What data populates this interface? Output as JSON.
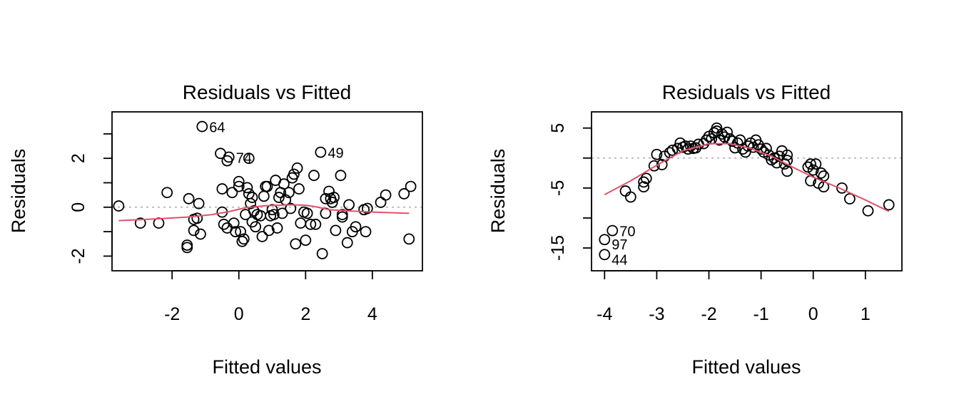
{
  "chart_data": [
    {
      "type": "scatter",
      "title": "Residuals vs Fitted",
      "xlabel": "Fitted values",
      "ylabel": "Residuals",
      "xlim": [
        -3.8,
        5.5
      ],
      "ylim": [
        -2.6,
        3.9
      ],
      "xticks": [
        -2,
        0,
        2,
        4
      ],
      "xtick_labels": [
        "-2",
        "0",
        "2",
        "4"
      ],
      "yticks": [
        -2,
        -1,
        0,
        1,
        2,
        3
      ],
      "ytick_labels": [
        "-2",
        "",
        "0",
        "",
        "2",
        ""
      ],
      "reference_line_y": 0,
      "points": [
        [
          -3.6,
          0.05
        ],
        [
          -2.95,
          -0.65
        ],
        [
          -2.4,
          -0.65
        ],
        [
          -2.15,
          0.6
        ],
        [
          -1.55,
          -1.55
        ],
        [
          -1.55,
          -1.65
        ],
        [
          -1.5,
          0.35
        ],
        [
          -1.35,
          -0.95
        ],
        [
          -1.35,
          -0.5
        ],
        [
          -1.25,
          -0.45
        ],
        [
          -1.2,
          0.15
        ],
        [
          -1.15,
          -1.1
        ],
        [
          -1.1,
          3.3
        ],
        [
          -0.55,
          2.2
        ],
        [
          -0.5,
          -0.2
        ],
        [
          -0.5,
          0.75
        ],
        [
          -0.45,
          -0.7
        ],
        [
          -0.35,
          -0.85
        ],
        [
          -0.35,
          1.9
        ],
        [
          -0.3,
          2.05
        ],
        [
          -0.2,
          0.6
        ],
        [
          -0.15,
          -0.65
        ],
        [
          -0.1,
          -1.0
        ],
        [
          0.0,
          0.85
        ],
        [
          0.0,
          1.05
        ],
        [
          0.05,
          -1.0
        ],
        [
          0.1,
          -1.4
        ],
        [
          0.15,
          -1.3
        ],
        [
          0.2,
          -0.3
        ],
        [
          0.25,
          0.8
        ],
        [
          0.3,
          2.0
        ],
        [
          0.3,
          0.55
        ],
        [
          0.35,
          0.15
        ],
        [
          0.4,
          -0.6
        ],
        [
          0.4,
          0.4
        ],
        [
          0.45,
          -0.15
        ],
        [
          0.5,
          -0.8
        ],
        [
          0.55,
          -0.3
        ],
        [
          0.65,
          -0.35
        ],
        [
          0.7,
          -1.2
        ],
        [
          0.75,
          0.45
        ],
        [
          0.8,
          0.85
        ],
        [
          0.85,
          0.85
        ],
        [
          0.9,
          -0.95
        ],
        [
          0.95,
          -0.35
        ],
        [
          1.0,
          -0.1
        ],
        [
          1.05,
          -0.3
        ],
        [
          1.1,
          1.1
        ],
        [
          1.15,
          -0.85
        ],
        [
          1.2,
          0.4
        ],
        [
          1.25,
          0.6
        ],
        [
          1.3,
          -0.25
        ],
        [
          1.35,
          0.95
        ],
        [
          1.4,
          0.3
        ],
        [
          1.5,
          0.6
        ],
        [
          1.55,
          -0.05
        ],
        [
          1.6,
          1.2
        ],
        [
          1.65,
          1.35
        ],
        [
          1.7,
          -1.5
        ],
        [
          1.75,
          1.6
        ],
        [
          1.8,
          0.75
        ],
        [
          1.85,
          -0.65
        ],
        [
          1.95,
          -0.2
        ],
        [
          2.0,
          -1.35
        ],
        [
          2.05,
          -0.25
        ],
        [
          2.15,
          -0.7
        ],
        [
          2.25,
          1.3
        ],
        [
          2.3,
          -0.7
        ],
        [
          2.45,
          2.25
        ],
        [
          2.5,
          -1.9
        ],
        [
          2.6,
          0.35
        ],
        [
          2.6,
          -0.25
        ],
        [
          2.7,
          0.65
        ],
        [
          2.75,
          0.35
        ],
        [
          2.8,
          0.2
        ],
        [
          2.85,
          0.4
        ],
        [
          2.9,
          -0.95
        ],
        [
          3.05,
          1.3
        ],
        [
          3.1,
          -0.4
        ],
        [
          3.1,
          -0.3
        ],
        [
          3.25,
          -1.45
        ],
        [
          3.3,
          0.1
        ],
        [
          3.4,
          -1.0
        ],
        [
          3.5,
          -0.8
        ],
        [
          3.75,
          -0.1
        ],
        [
          3.8,
          -1.0
        ],
        [
          3.85,
          -0.05
        ],
        [
          4.25,
          0.2
        ],
        [
          4.4,
          0.5
        ],
        [
          4.95,
          0.55
        ],
        [
          5.15,
          0.85
        ],
        [
          5.1,
          -1.3
        ]
      ],
      "labeled_points": [
        {
          "label": "64",
          "x": -1.1,
          "y": 3.3
        },
        {
          "label": "74",
          "x": -0.3,
          "y": 2.05
        },
        {
          "label": "49",
          "x": 2.45,
          "y": 2.25
        }
      ],
      "smooth_line": [
        [
          -3.6,
          -0.55
        ],
        [
          -2.5,
          -0.48
        ],
        [
          -1.5,
          -0.4
        ],
        [
          -0.8,
          -0.3
        ],
        [
          -0.3,
          -0.18
        ],
        [
          0.2,
          -0.02
        ],
        [
          0.8,
          0.06
        ],
        [
          1.5,
          0.1
        ],
        [
          2.0,
          0.08
        ],
        [
          2.3,
          0.02
        ],
        [
          2.7,
          -0.1
        ],
        [
          3.3,
          -0.15
        ],
        [
          4.0,
          -0.2
        ],
        [
          5.1,
          -0.25
        ]
      ],
      "smooth_color": "#DF536B"
    },
    {
      "type": "scatter",
      "title": "Residuals vs Fitted",
      "xlabel": "Fitted values",
      "ylabel": "Residuals",
      "xlim": [
        -4.25,
        1.7
      ],
      "ylim": [
        -18.8,
        7.7
      ],
      "xticks": [
        -4,
        -3,
        -2,
        -1,
        0,
        1
      ],
      "xtick_labels": [
        "-4",
        "-3",
        "-2",
        "-1",
        "0",
        "1"
      ],
      "yticks": [
        5,
        0,
        -5,
        -10,
        -15
      ],
      "ytick_labels": [
        "5",
        "",
        "-5",
        "",
        "-15"
      ],
      "reference_line_y": 0,
      "points": [
        [
          -4.0,
          -13.6
        ],
        [
          -3.85,
          -12.1
        ],
        [
          -4.0,
          -16.1
        ],
        [
          -3.6,
          -5.5
        ],
        [
          -3.5,
          -6.5
        ],
        [
          -3.25,
          -4.0
        ],
        [
          -3.25,
          -4.8
        ],
        [
          -3.2,
          -3.4
        ],
        [
          -3.0,
          0.6
        ],
        [
          -3.05,
          -1.3
        ],
        [
          -2.9,
          -1.1
        ],
        [
          -2.85,
          0.3
        ],
        [
          -2.75,
          0.9
        ],
        [
          -2.7,
          1.3
        ],
        [
          -2.6,
          1.6
        ],
        [
          -2.55,
          2.5
        ],
        [
          -2.5,
          1.8
        ],
        [
          -2.45,
          2.0
        ],
        [
          -2.4,
          1.5
        ],
        [
          -2.35,
          2.0
        ],
        [
          -2.3,
          1.6
        ],
        [
          -2.25,
          1.7
        ],
        [
          -2.2,
          2.3
        ],
        [
          -2.1,
          2.4
        ],
        [
          -2.05,
          3.0
        ],
        [
          -2.0,
          3.6
        ],
        [
          -1.95,
          3.2
        ],
        [
          -1.9,
          4.2
        ],
        [
          -1.85,
          5.0
        ],
        [
          -1.85,
          4.5
        ],
        [
          -1.8,
          3.0
        ],
        [
          -1.75,
          4.0
        ],
        [
          -1.7,
          3.5
        ],
        [
          -1.65,
          4.3
        ],
        [
          -1.6,
          3.2
        ],
        [
          -1.55,
          2.8
        ],
        [
          -1.5,
          1.7
        ],
        [
          -1.45,
          2.5
        ],
        [
          -1.4,
          3.0
        ],
        [
          -1.35,
          1.5
        ],
        [
          -1.3,
          1.0
        ],
        [
          -1.25,
          2.0
        ],
        [
          -1.2,
          2.5
        ],
        [
          -1.15,
          1.8
        ],
        [
          -1.1,
          3.0
        ],
        [
          -1.05,
          2.2
        ],
        [
          -1.0,
          1.5
        ],
        [
          -0.95,
          1.0
        ],
        [
          -0.9,
          1.6
        ],
        [
          -0.85,
          0.5
        ],
        [
          -0.8,
          -0.3
        ],
        [
          -0.75,
          0.0
        ],
        [
          -0.7,
          -0.8
        ],
        [
          -0.65,
          0.3
        ],
        [
          -0.6,
          1.2
        ],
        [
          -0.55,
          -1.0
        ],
        [
          -0.5,
          0.5
        ],
        [
          -0.5,
          -2.2
        ],
        [
          -0.5,
          -0.4
        ],
        [
          -0.1,
          -1.5
        ],
        [
          -0.05,
          -1.0
        ],
        [
          -0.05,
          -3.8
        ],
        [
          0.0,
          -2.0
        ],
        [
          0.05,
          -1.0
        ],
        [
          0.1,
          -4.2
        ],
        [
          0.15,
          -2.5
        ],
        [
          0.2,
          -4.8
        ],
        [
          0.2,
          -3.0
        ],
        [
          0.55,
          -5.0
        ],
        [
          0.7,
          -6.8
        ],
        [
          1.05,
          -8.8
        ],
        [
          1.45,
          -7.8
        ]
      ],
      "labeled_points": [
        {
          "label": "70",
          "x": -3.85,
          "y": -12.1
        },
        {
          "label": "97",
          "x": -4.0,
          "y": -13.6
        },
        {
          "label": "44",
          "x": -4.0,
          "y": -16.1
        }
      ],
      "smooth_line": [
        [
          -4,
          -6.1
        ],
        [
          -3.5,
          -3.8
        ],
        [
          -3,
          -1.2
        ],
        [
          -2.5,
          1.2
        ],
        [
          -2,
          2.4
        ],
        [
          -1.6,
          2.4
        ],
        [
          -1.2,
          1.6
        ],
        [
          -0.8,
          0.3
        ],
        [
          -0.4,
          -1.5
        ],
        [
          0,
          -3.2
        ],
        [
          0.5,
          -5.0
        ],
        [
          1.0,
          -7.0
        ],
        [
          1.45,
          -8.9
        ]
      ],
      "smooth_color": "#DF536B"
    }
  ]
}
